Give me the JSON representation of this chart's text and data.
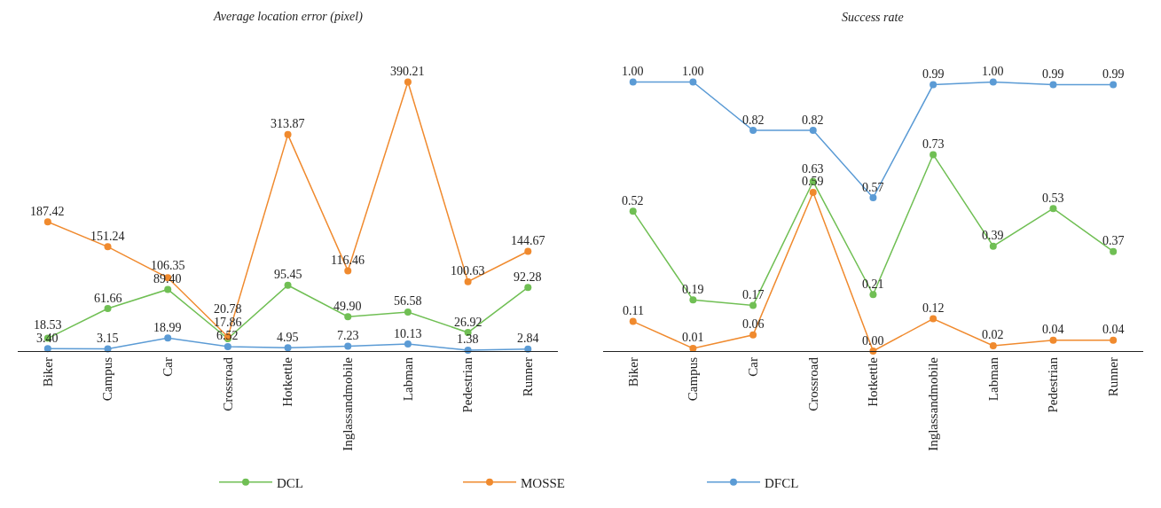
{
  "chart_data": [
    {
      "type": "line",
      "title": "Average location error (pixel)",
      "categories": [
        "Biker",
        "Campus",
        "Car",
        "Crossroad",
        "Hotkettle",
        "Inglassandmobile",
        "Labman",
        "Pedestrian",
        "Runner"
      ],
      "tick_labels": "x",
      "marker": "circle",
      "legend": "bottom",
      "series": [
        {
          "name": "DCL",
          "color": "#70bf54",
          "values": [
            18.53,
            61.66,
            89.4,
            17.86,
            95.45,
            49.9,
            56.58,
            26.92,
            92.28
          ],
          "value_labels": [
            "18.53",
            "61.66",
            "89.40",
            "17.86",
            "95.45",
            "49.90",
            "56.58",
            "26.92",
            "92.28"
          ]
        },
        {
          "name": "MOSSE",
          "color": "#f08a2e",
          "values": [
            187.42,
            151.24,
            106.35,
            20.78,
            313.87,
            116.46,
            390.21,
            100.63,
            144.67
          ],
          "value_labels": [
            "187.42",
            "151.24",
            "106.35",
            "20.78",
            "313.87",
            "116.46",
            "390.21",
            "100.63",
            "144.67"
          ]
        },
        {
          "name": "DFCL",
          "color": "#5b9bd5",
          "values": [
            3.4,
            3.15,
            18.99,
            6.52,
            4.95,
            7.23,
            10.13,
            1.38,
            2.84
          ],
          "value_labels": [
            "3.40",
            "3.15",
            "18.99",
            "6.52",
            "4.95",
            "7.23",
            "10.13",
            "1.38",
            "2.84"
          ]
        }
      ]
    },
    {
      "type": "line",
      "title": "Success rate",
      "categories": [
        "Biker",
        "Campus",
        "Car",
        "Crossroad",
        "Hotkettle",
        "Inglassandmobile",
        "Labman",
        "Pedestrian",
        "Runner"
      ],
      "tick_labels": "x",
      "marker": "circle",
      "legend": "bottom",
      "series": [
        {
          "name": "DCL",
          "color": "#70bf54",
          "values": [
            0.52,
            0.19,
            0.17,
            0.63,
            0.21,
            0.73,
            0.39,
            0.53,
            0.37
          ],
          "value_labels": [
            "0.52",
            "0.19",
            "0.17",
            "0.63",
            "0.21",
            "0.73",
            "0.39",
            "0.53",
            "0.37"
          ]
        },
        {
          "name": "MOSSE",
          "color": "#f08a2e",
          "values": [
            0.11,
            0.01,
            0.06,
            0.59,
            0.0,
            0.12,
            0.02,
            0.04,
            0.04
          ],
          "value_labels": [
            "0.11",
            "0.01",
            "0.06",
            "0.59",
            "0.00",
            "0.12",
            "0.02",
            "0.04",
            "0.04"
          ]
        },
        {
          "name": "DFCL",
          "color": "#5b9bd5",
          "values": [
            1.0,
            1.0,
            0.82,
            0.82,
            0.57,
            0.99,
            1.0,
            0.99,
            0.99
          ],
          "value_labels": [
            "1.00",
            "1.00",
            "0.82",
            "0.82",
            "0.57",
            "0.99",
            "1.00",
            "0.99",
            "0.99"
          ]
        }
      ]
    }
  ]
}
